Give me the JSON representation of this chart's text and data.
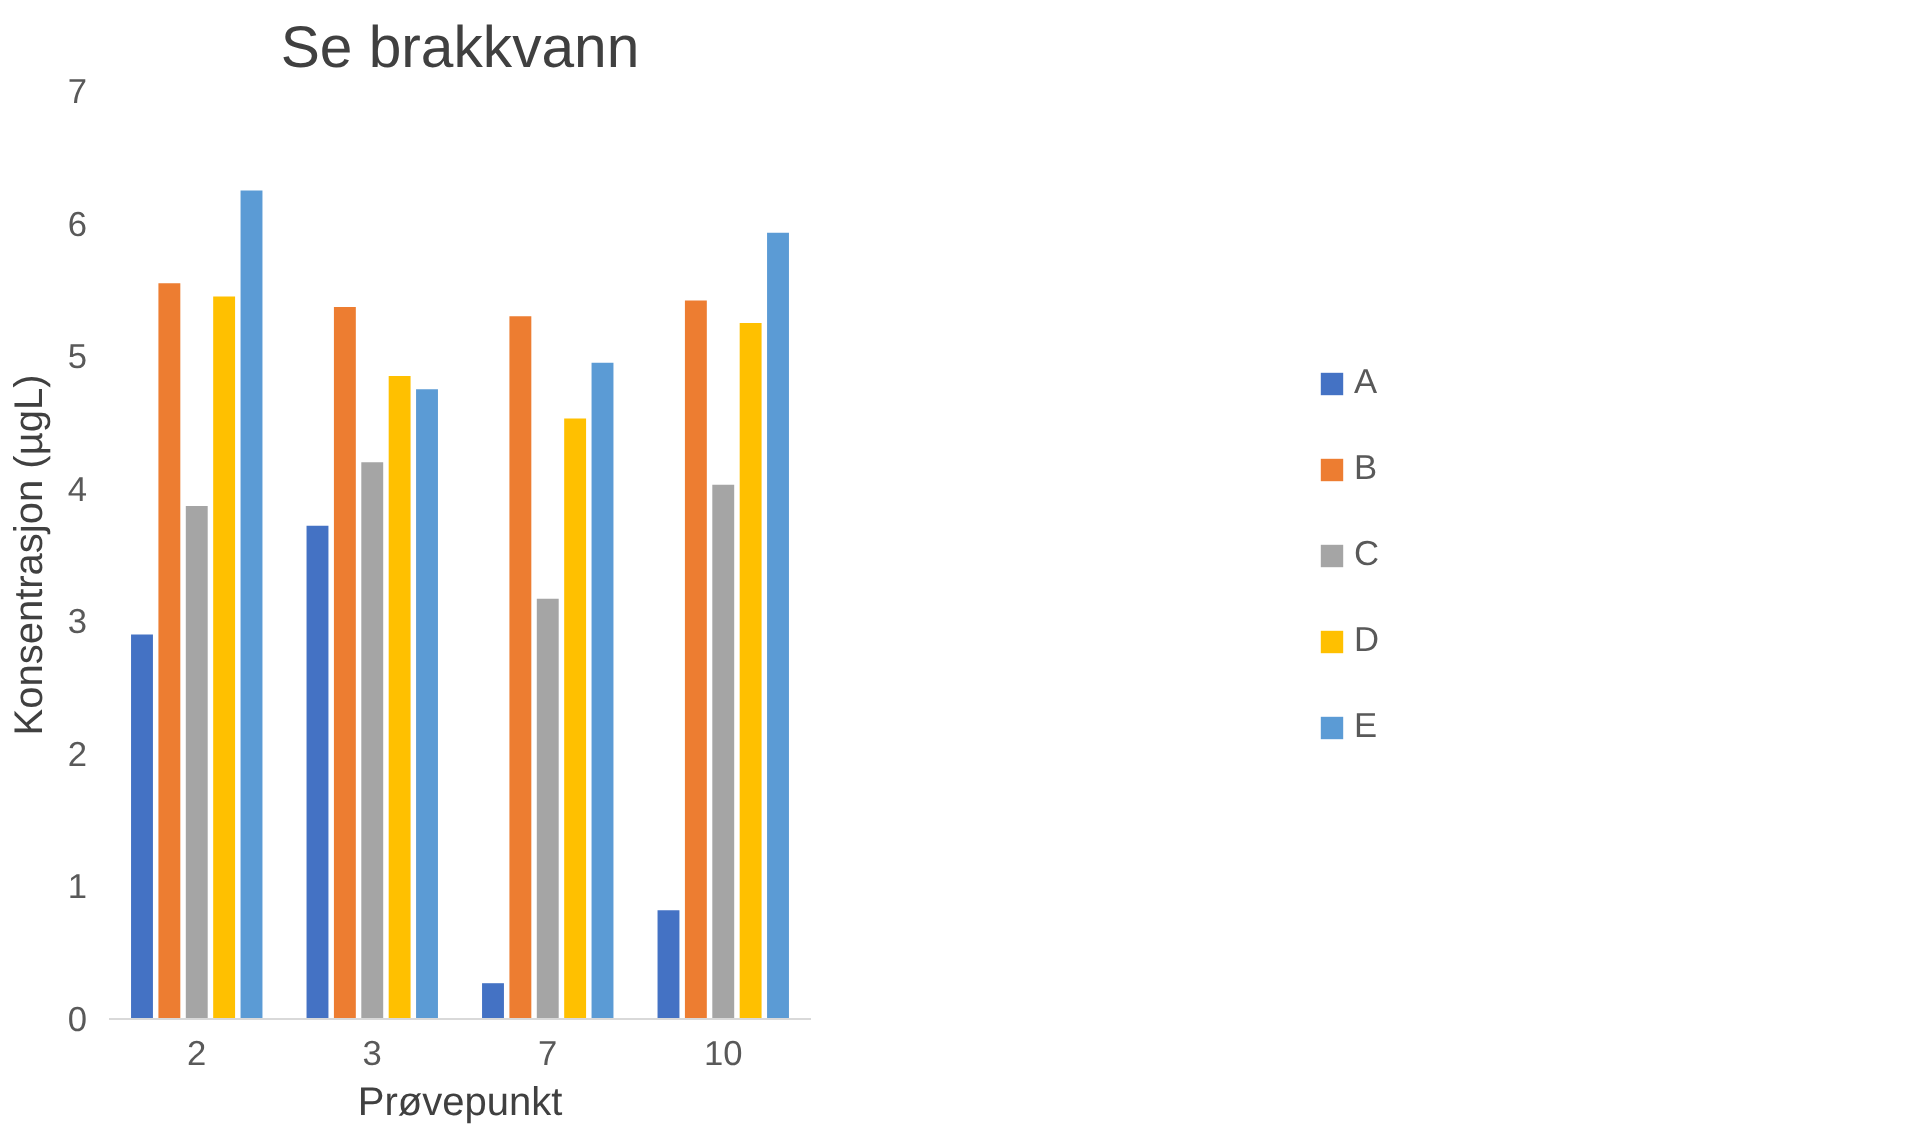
{
  "chart_data": {
    "type": "bar",
    "title": "Se brakkvann",
    "xlabel": "Prøvepunkt",
    "ylabel": "Konsentrasjon (µgL)",
    "categories": [
      "2",
      "3",
      "7",
      "10"
    ],
    "series": [
      {
        "name": "A",
        "color": "#4472c4",
        "values": [
          2.9,
          3.72,
          0.27,
          0.82
        ]
      },
      {
        "name": "B",
        "color": "#ed7d31",
        "values": [
          5.55,
          5.37,
          5.3,
          5.42
        ]
      },
      {
        "name": "C",
        "color": "#a5a5a5",
        "values": [
          3.87,
          4.2,
          3.17,
          4.03
        ]
      },
      {
        "name": "D",
        "color": "#ffc000",
        "values": [
          5.45,
          4.85,
          4.53,
          5.25
        ]
      },
      {
        "name": "E",
        "color": "#5b9bd5",
        "values": [
          6.25,
          4.75,
          4.95,
          5.93
        ]
      }
    ],
    "ylim": [
      0,
      7
    ],
    "yticks": [
      0,
      1,
      2,
      3,
      4,
      5,
      6,
      7
    ],
    "grid": false,
    "legend": "right"
  }
}
